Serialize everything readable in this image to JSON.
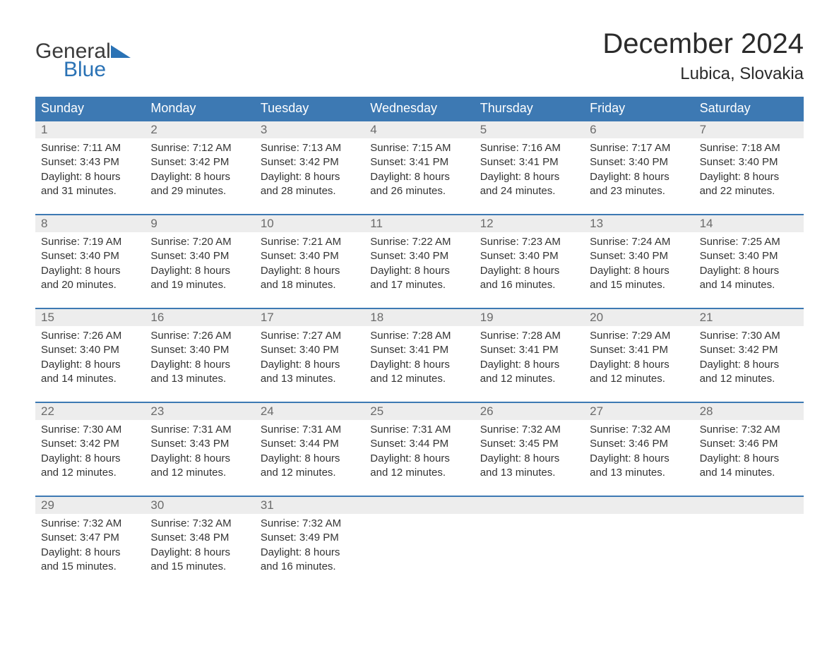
{
  "logo": {
    "line1": "General",
    "line2": "Blue"
  },
  "title": "December 2024",
  "location": "Lubica, Slovakia",
  "colors": {
    "header_bg": "#3d79b3",
    "header_text": "#ffffff",
    "daynum_bg": "#ededed",
    "daynum_text": "#6b6b6b",
    "body_text": "#333333",
    "rule": "#3d79b3",
    "logo_blue": "#2a72b5",
    "logo_gray": "#3b3b3b",
    "page_bg": "#ffffff"
  },
  "weekdays": [
    "Sunday",
    "Monday",
    "Tuesday",
    "Wednesday",
    "Thursday",
    "Friday",
    "Saturday"
  ],
  "weeks": [
    [
      {
        "n": "1",
        "sunrise": "Sunrise: 7:11 AM",
        "sunset": "Sunset: 3:43 PM",
        "day": "Daylight: 8 hours and 31 minutes."
      },
      {
        "n": "2",
        "sunrise": "Sunrise: 7:12 AM",
        "sunset": "Sunset: 3:42 PM",
        "day": "Daylight: 8 hours and 29 minutes."
      },
      {
        "n": "3",
        "sunrise": "Sunrise: 7:13 AM",
        "sunset": "Sunset: 3:42 PM",
        "day": "Daylight: 8 hours and 28 minutes."
      },
      {
        "n": "4",
        "sunrise": "Sunrise: 7:15 AM",
        "sunset": "Sunset: 3:41 PM",
        "day": "Daylight: 8 hours and 26 minutes."
      },
      {
        "n": "5",
        "sunrise": "Sunrise: 7:16 AM",
        "sunset": "Sunset: 3:41 PM",
        "day": "Daylight: 8 hours and 24 minutes."
      },
      {
        "n": "6",
        "sunrise": "Sunrise: 7:17 AM",
        "sunset": "Sunset: 3:40 PM",
        "day": "Daylight: 8 hours and 23 minutes."
      },
      {
        "n": "7",
        "sunrise": "Sunrise: 7:18 AM",
        "sunset": "Sunset: 3:40 PM",
        "day": "Daylight: 8 hours and 22 minutes."
      }
    ],
    [
      {
        "n": "8",
        "sunrise": "Sunrise: 7:19 AM",
        "sunset": "Sunset: 3:40 PM",
        "day": "Daylight: 8 hours and 20 minutes."
      },
      {
        "n": "9",
        "sunrise": "Sunrise: 7:20 AM",
        "sunset": "Sunset: 3:40 PM",
        "day": "Daylight: 8 hours and 19 minutes."
      },
      {
        "n": "10",
        "sunrise": "Sunrise: 7:21 AM",
        "sunset": "Sunset: 3:40 PM",
        "day": "Daylight: 8 hours and 18 minutes."
      },
      {
        "n": "11",
        "sunrise": "Sunrise: 7:22 AM",
        "sunset": "Sunset: 3:40 PM",
        "day": "Daylight: 8 hours and 17 minutes."
      },
      {
        "n": "12",
        "sunrise": "Sunrise: 7:23 AM",
        "sunset": "Sunset: 3:40 PM",
        "day": "Daylight: 8 hours and 16 minutes."
      },
      {
        "n": "13",
        "sunrise": "Sunrise: 7:24 AM",
        "sunset": "Sunset: 3:40 PM",
        "day": "Daylight: 8 hours and 15 minutes."
      },
      {
        "n": "14",
        "sunrise": "Sunrise: 7:25 AM",
        "sunset": "Sunset: 3:40 PM",
        "day": "Daylight: 8 hours and 14 minutes."
      }
    ],
    [
      {
        "n": "15",
        "sunrise": "Sunrise: 7:26 AM",
        "sunset": "Sunset: 3:40 PM",
        "day": "Daylight: 8 hours and 14 minutes."
      },
      {
        "n": "16",
        "sunrise": "Sunrise: 7:26 AM",
        "sunset": "Sunset: 3:40 PM",
        "day": "Daylight: 8 hours and 13 minutes."
      },
      {
        "n": "17",
        "sunrise": "Sunrise: 7:27 AM",
        "sunset": "Sunset: 3:40 PM",
        "day": "Daylight: 8 hours and 13 minutes."
      },
      {
        "n": "18",
        "sunrise": "Sunrise: 7:28 AM",
        "sunset": "Sunset: 3:41 PM",
        "day": "Daylight: 8 hours and 12 minutes."
      },
      {
        "n": "19",
        "sunrise": "Sunrise: 7:28 AM",
        "sunset": "Sunset: 3:41 PM",
        "day": "Daylight: 8 hours and 12 minutes."
      },
      {
        "n": "20",
        "sunrise": "Sunrise: 7:29 AM",
        "sunset": "Sunset: 3:41 PM",
        "day": "Daylight: 8 hours and 12 minutes."
      },
      {
        "n": "21",
        "sunrise": "Sunrise: 7:30 AM",
        "sunset": "Sunset: 3:42 PM",
        "day": "Daylight: 8 hours and 12 minutes."
      }
    ],
    [
      {
        "n": "22",
        "sunrise": "Sunrise: 7:30 AM",
        "sunset": "Sunset: 3:42 PM",
        "day": "Daylight: 8 hours and 12 minutes."
      },
      {
        "n": "23",
        "sunrise": "Sunrise: 7:31 AM",
        "sunset": "Sunset: 3:43 PM",
        "day": "Daylight: 8 hours and 12 minutes."
      },
      {
        "n": "24",
        "sunrise": "Sunrise: 7:31 AM",
        "sunset": "Sunset: 3:44 PM",
        "day": "Daylight: 8 hours and 12 minutes."
      },
      {
        "n": "25",
        "sunrise": "Sunrise: 7:31 AM",
        "sunset": "Sunset: 3:44 PM",
        "day": "Daylight: 8 hours and 12 minutes."
      },
      {
        "n": "26",
        "sunrise": "Sunrise: 7:32 AM",
        "sunset": "Sunset: 3:45 PM",
        "day": "Daylight: 8 hours and 13 minutes."
      },
      {
        "n": "27",
        "sunrise": "Sunrise: 7:32 AM",
        "sunset": "Sunset: 3:46 PM",
        "day": "Daylight: 8 hours and 13 minutes."
      },
      {
        "n": "28",
        "sunrise": "Sunrise: 7:32 AM",
        "sunset": "Sunset: 3:46 PM",
        "day": "Daylight: 8 hours and 14 minutes."
      }
    ],
    [
      {
        "n": "29",
        "sunrise": "Sunrise: 7:32 AM",
        "sunset": "Sunset: 3:47 PM",
        "day": "Daylight: 8 hours and 15 minutes."
      },
      {
        "n": "30",
        "sunrise": "Sunrise: 7:32 AM",
        "sunset": "Sunset: 3:48 PM",
        "day": "Daylight: 8 hours and 15 minutes."
      },
      {
        "n": "31",
        "sunrise": "Sunrise: 7:32 AM",
        "sunset": "Sunset: 3:49 PM",
        "day": "Daylight: 8 hours and 16 minutes."
      },
      null,
      null,
      null,
      null
    ]
  ]
}
